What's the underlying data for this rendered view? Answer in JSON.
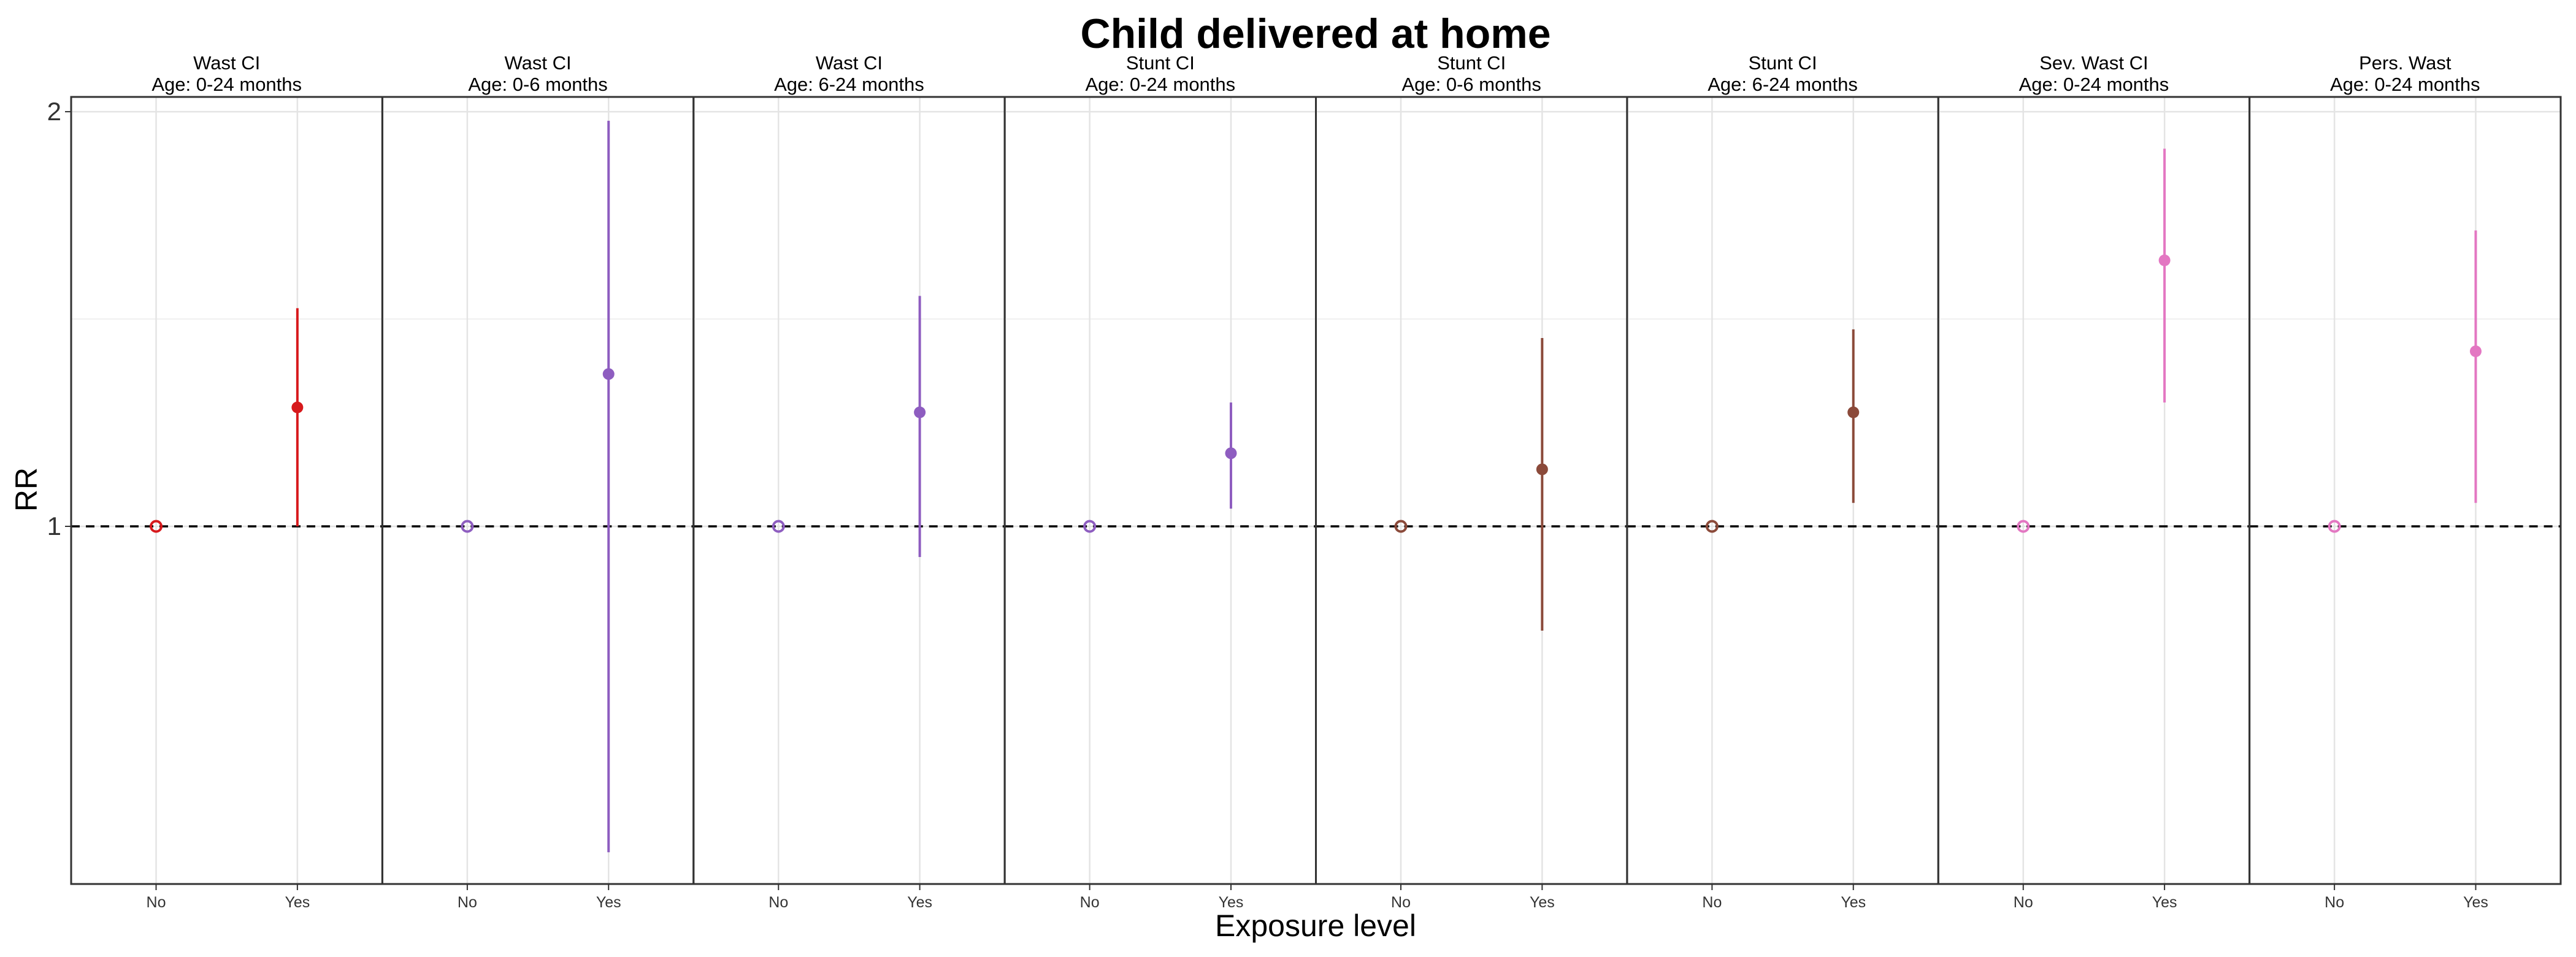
{
  "chart_data": {
    "type": "scatter",
    "title": "Child delivered at home",
    "xlabel": "Exposure level",
    "ylabel": "RR",
    "y_scale": "log",
    "ylim": [
      0.55,
      2.05
    ],
    "y_ticks": [
      1,
      2
    ],
    "y_tick_labels": [
      "1",
      "2"
    ],
    "reference_line": 1,
    "grid": true,
    "categories": [
      "No",
      "Yes"
    ],
    "panels": [
      {
        "outcome": "Wast CI",
        "age": "Age: 0-24 months",
        "color": "#D7191C",
        "points": [
          {
            "x": "No",
            "rr": 1.0,
            "lower": 1.0,
            "upper": 1.0
          },
          {
            "x": "Yes",
            "rr": 1.22,
            "lower": 1.0,
            "upper": 1.44
          }
        ]
      },
      {
        "outcome": "Wast CI",
        "age": "Age: 0-6 months",
        "color": "#8E5DC0",
        "points": [
          {
            "x": "No",
            "rr": 1.0,
            "lower": 1.0,
            "upper": 1.0
          },
          {
            "x": "Yes",
            "rr": 1.29,
            "lower": 0.58,
            "upper": 1.97
          }
        ]
      },
      {
        "outcome": "Wast CI",
        "age": "Age: 6-24 months",
        "color": "#8E5DC0",
        "points": [
          {
            "x": "No",
            "rr": 1.0,
            "lower": 1.0,
            "upper": 1.0
          },
          {
            "x": "Yes",
            "rr": 1.21,
            "lower": 0.95,
            "upper": 1.47
          }
        ]
      },
      {
        "outcome": "Stunt CI",
        "age": "Age: 0-24 months",
        "color": "#8E5DC0",
        "points": [
          {
            "x": "No",
            "rr": 1.0,
            "lower": 1.0,
            "upper": 1.0
          },
          {
            "x": "Yes",
            "rr": 1.13,
            "lower": 1.03,
            "upper": 1.23
          }
        ]
      },
      {
        "outcome": "Stunt CI",
        "age": "Age: 0-6 months",
        "color": "#8B4A3A",
        "points": [
          {
            "x": "No",
            "rr": 1.0,
            "lower": 1.0,
            "upper": 1.0
          },
          {
            "x": "Yes",
            "rr": 1.1,
            "lower": 0.84,
            "upper": 1.37
          }
        ]
      },
      {
        "outcome": "Stunt CI",
        "age": "Age: 6-24 months",
        "color": "#8B4A3A",
        "points": [
          {
            "x": "No",
            "rr": 1.0,
            "lower": 1.0,
            "upper": 1.0
          },
          {
            "x": "Yes",
            "rr": 1.21,
            "lower": 1.04,
            "upper": 1.39
          }
        ]
      },
      {
        "outcome": "Sev. Wast CI",
        "age": "Age: 0-24 months",
        "color": "#E377C2",
        "points": [
          {
            "x": "No",
            "rr": 1.0,
            "lower": 1.0,
            "upper": 1.0
          },
          {
            "x": "Yes",
            "rr": 1.56,
            "lower": 1.23,
            "upper": 1.88
          }
        ]
      },
      {
        "outcome": "Pers. Wast",
        "age": "Age: 0-24 months",
        "color": "#E377C2",
        "points": [
          {
            "x": "No",
            "rr": 1.0,
            "lower": 1.0,
            "upper": 1.0
          },
          {
            "x": "Yes",
            "rr": 1.34,
            "lower": 1.04,
            "upper": 1.64
          }
        ]
      }
    ]
  }
}
